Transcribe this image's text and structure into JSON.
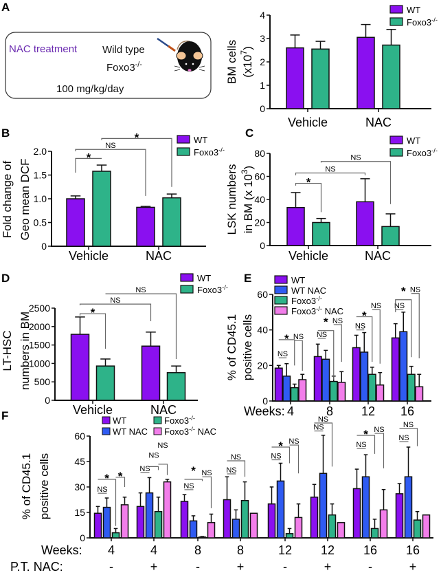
{
  "colors": {
    "WT": "#8A10F0",
    "WT NAC": "#2F5BF2",
    "Foxo3^{-/-}": "#2EB389",
    "Foxo3^{-/-} NAC": "#F27EEA",
    "treatment_text": "#6A2AB0",
    "bracket": "#666666"
  },
  "schematic": {
    "panel": "A",
    "treatment": "NAC treatment",
    "genotype_1": "Wild type",
    "genotype_2": "Foxo3^{-/-}",
    "dose": "100 mg/kg/day",
    "icon": "mouse-injection-icon"
  },
  "chart_data": [
    {
      "panel": "A",
      "type": "bar",
      "categories": [
        "Vehicle",
        "NAC"
      ],
      "series": [
        {
          "name": "WT",
          "values": [
            2.6,
            3.05
          ],
          "errors": [
            0.55,
            0.55
          ]
        },
        {
          "name": "Foxo3^{-/-}",
          "values": [
            2.55,
            2.72
          ],
          "errors": [
            0.33,
            0.67
          ]
        }
      ],
      "ylabel": [
        "BM cells",
        "(x10^{7})"
      ],
      "ylim": [
        0,
        4
      ],
      "yticks": [
        "0",
        "1",
        "2",
        "3",
        "4"
      ],
      "annotations": []
    },
    {
      "panel": "B",
      "type": "bar",
      "categories": [
        "Vehicle",
        "NAC"
      ],
      "series": [
        {
          "name": "WT",
          "values": [
            1.0,
            0.82
          ],
          "errors": [
            0.06,
            0.02
          ]
        },
        {
          "name": "Foxo3^{-/-}",
          "values": [
            1.58,
            1.02
          ],
          "errors": [
            0.13,
            0.08
          ]
        }
      ],
      "ylabel": [
        "Fold change of",
        "Geo mean DCF"
      ],
      "ylim": [
        0,
        2
      ],
      "yticks": [
        "0",
        "0.5",
        "1.0",
        "1.5",
        "2.0"
      ],
      "annotations": [
        {
          "from": [
            0,
            0
          ],
          "to": [
            0,
            1
          ],
          "level": 1.85,
          "drop_from": 1.55,
          "drop_to": 1.85,
          "label": "*"
        },
        {
          "from": [
            0,
            0
          ],
          "to": [
            1,
            0
          ],
          "level": 2.04,
          "drop_from": 2.0,
          "drop_to": 1.06,
          "label": "NS"
        },
        {
          "from": [
            0,
            1
          ],
          "to": [
            1,
            1
          ],
          "level": 2.27,
          "drop_from": 2.24,
          "drop_to": 1.25,
          "label": "*"
        }
      ]
    },
    {
      "panel": "C",
      "type": "bar",
      "categories": [
        "Vehicle",
        "NAC"
      ],
      "series": [
        {
          "name": "WT",
          "values": [
            33,
            38
          ],
          "errors": [
            13,
            20
          ]
        },
        {
          "name": "Foxo3^{-/-}",
          "values": [
            20,
            16.5
          ],
          "errors": [
            3.5,
            11
          ]
        }
      ],
      "ylabel": [
        "LSK numbers",
        "in BM (x 10^{3})"
      ],
      "ylim": [
        0,
        80
      ],
      "yticks": [
        "0",
        "20",
        "40",
        "60",
        "80"
      ],
      "annotations": [
        {
          "from": [
            0,
            0
          ],
          "to": [
            0,
            1
          ],
          "level": 54,
          "drop_from": 52,
          "drop_to": 29,
          "label": "*"
        },
        {
          "from": [
            0,
            0
          ],
          "to": [
            1,
            0
          ],
          "level": 63,
          "drop_from": 61,
          "drop_to": 61,
          "label": "NS"
        },
        {
          "from": [
            0,
            1
          ],
          "to": [
            1,
            1
          ],
          "level": 73,
          "drop_from": 72,
          "drop_to": 36,
          "label": "NS"
        }
      ]
    },
    {
      "panel": "D",
      "type": "bar",
      "categories": [
        "Vehicle",
        "NAC"
      ],
      "series": [
        {
          "name": "WT",
          "values": [
            1790,
            1470
          ],
          "errors": [
            470,
            380
          ]
        },
        {
          "name": "Foxo3^{-/-}",
          "values": [
            930,
            750
          ],
          "errors": [
            190,
            180
          ]
        }
      ],
      "ylabel": [
        "LT-HSC",
        "numbers in BM"
      ],
      "ylim": [
        0,
        2500
      ],
      "yticks": [
        "0",
        "500",
        "1000",
        "1500",
        "2000",
        "2500"
      ],
      "annotations": [
        {
          "from": [
            0,
            0
          ],
          "to": [
            0,
            1
          ],
          "level": 2350,
          "drop_from": 2300,
          "drop_to": 1400,
          "label": "*"
        },
        {
          "from": [
            0,
            0
          ],
          "to": [
            1,
            0
          ],
          "level": 2610,
          "drop_from": 2580,
          "drop_to": 2145,
          "label": "NS"
        },
        {
          "from": [
            0,
            1
          ],
          "to": [
            1,
            1
          ],
          "level": 2890,
          "drop_from": 2890,
          "drop_to": 1120,
          "label": "NS"
        }
      ]
    },
    {
      "panel": "E",
      "type": "bar",
      "xlabel": "Weeks:",
      "categories": [
        "4",
        "8",
        "12",
        "16"
      ],
      "series": [
        {
          "name": "WT",
          "values": [
            18.5,
            25,
            30,
            35.5
          ],
          "errors": [
            1.5,
            7,
            7,
            8
          ]
        },
        {
          "name": "WT NAC",
          "values": [
            14,
            23.5,
            27.5,
            39
          ],
          "errors": [
            7,
            5,
            11,
            11
          ]
        },
        {
          "name": "Foxo3^{-/-}",
          "values": [
            7.5,
            11,
            15,
            15
          ],
          "errors": [
            2,
            3,
            4,
            4.5
          ]
        },
        {
          "name": "Foxo3^{-/-} NAC",
          "values": [
            12,
            10.5,
            9,
            8
          ],
          "errors": [
            3,
            6,
            7,
            7
          ]
        }
      ],
      "ylabel": [
        "% of CD45.1",
        "positive cells"
      ],
      "ylim": [
        0,
        60
      ],
      "yticks": [
        "0",
        "20",
        "40",
        "60"
      ],
      "annotations": [
        {
          "from": [
            0,
            0
          ],
          "to": [
            0,
            1
          ],
          "level": 24.3,
          "drop_from": 24.3,
          "drop_to": 24.3,
          "label": "NS"
        },
        {
          "from": [
            0,
            0
          ],
          "to": [
            0,
            2
          ],
          "level": 34.5,
          "drop_from": 34.5,
          "drop_to": 20,
          "label": "*"
        },
        {
          "from": [
            0,
            2
          ],
          "to": [
            0,
            3
          ],
          "level": 34,
          "drop_from": 34,
          "drop_to": 17,
          "label": "NS"
        },
        {
          "from": [
            1,
            0
          ],
          "to": [
            1,
            1
          ],
          "level": 35.3,
          "drop_from": 35.3,
          "drop_to": 35.3,
          "label": "NS"
        },
        {
          "from": [
            1,
            0
          ],
          "to": [
            1,
            2
          ],
          "level": 39.6,
          "drop_from": 39.6,
          "drop_to": 12,
          "label": "*"
        },
        {
          "from": [
            1,
            2
          ],
          "to": [
            1,
            3
          ],
          "level": 43,
          "drop_from": 43,
          "drop_to": 22,
          "label": "NS"
        },
        {
          "from": [
            2,
            0
          ],
          "to": [
            2,
            1
          ],
          "level": 40,
          "drop_from": 40,
          "drop_to": 40,
          "label": "NS"
        },
        {
          "from": [
            2,
            0
          ],
          "to": [
            2,
            2
          ],
          "level": 47.4,
          "drop_from": 47.4,
          "drop_to": 22,
          "label": "*"
        },
        {
          "from": [
            2,
            2
          ],
          "to": [
            2,
            3
          ],
          "level": 51.4,
          "drop_from": 51.4,
          "drop_to": 21,
          "label": "NS"
        },
        {
          "from": [
            3,
            0
          ],
          "to": [
            3,
            1
          ],
          "level": 51.4,
          "drop_from": 51.4,
          "drop_to": 51.4,
          "label": "NS"
        },
        {
          "from": [
            3,
            0
          ],
          "to": [
            3,
            2
          ],
          "level": 57,
          "drop_from": 50,
          "drop_to": 24.7,
          "label": "*"
        },
        {
          "from": [
            3,
            2
          ],
          "to": [
            3,
            3
          ],
          "level": 60.5,
          "drop_from": 60.5,
          "drop_to": 24,
          "label": "NS"
        }
      ]
    },
    {
      "panel": "F",
      "type": "bar",
      "xlabel": "Weeks:",
      "categories": [
        "4",
        "4",
        "8",
        "8",
        "12",
        "12",
        "16",
        "16"
      ],
      "row2_label": "P.T. NAC:",
      "row2": [
        "-",
        "+",
        "-",
        "+",
        "-",
        "+",
        "-",
        "+"
      ],
      "series": [
        {
          "name": "WT",
          "values": [
            14.5,
            18.5,
            21.5,
            22.5,
            20,
            24,
            29,
            26
          ],
          "errors": [
            4,
            8,
            4,
            13.5,
            10,
            7.5,
            11.5,
            6
          ]
        },
        {
          "name": "WT NAC",
          "values": [
            18,
            26.5,
            10,
            11,
            33.5,
            38,
            36,
            36
          ],
          "errors": [
            5.5,
            9,
            3,
            5.5,
            10.5,
            22.5,
            13,
            17.5
          ]
        },
        {
          "name": "Foxo3^{-/-}",
          "values": [
            3,
            15.5,
            0.5,
            22,
            2.5,
            13.5,
            5.5,
            10.5
          ],
          "errors": [
            2.5,
            8.5,
            0.3,
            11,
            3,
            6.5,
            5.5,
            5
          ]
        },
        {
          "name": "Foxo3^{-/-} NAC",
          "values": [
            19.5,
            33,
            9,
            14.5,
            12,
            9,
            16.5,
            13.5
          ],
          "errors": [
            4.5,
            1.5,
            5,
            0,
            8,
            0,
            12,
            0
          ]
        }
      ],
      "ylabel": [
        "% of CD45.1",
        "positive cells"
      ],
      "ylim": [
        0,
        65
      ],
      "yticks": [
        "0",
        "15",
        "30",
        "45",
        "60"
      ],
      "annotations": [
        {
          "from": [
            0,
            0
          ],
          "to": [
            0,
            1
          ],
          "level": 26.3,
          "drop_from": 26.3,
          "drop_to": 26.3,
          "label": "NS"
        },
        {
          "from": [
            0,
            0
          ],
          "to": [
            0,
            2
          ],
          "level": 34.5,
          "drop_from": 34.5,
          "drop_to": 7,
          "label": "*"
        },
        {
          "from": [
            0,
            2
          ],
          "to": [
            0,
            3
          ],
          "level": 35.7,
          "drop_from": 35.7,
          "drop_to": 30,
          "label": "*"
        },
        {
          "from": [
            1,
            0
          ],
          "to": [
            1,
            1
          ],
          "level": 38.5,
          "drop_from": 38.5,
          "drop_to": 38.5,
          "label": "NS"
        },
        {
          "from": [
            1,
            1
          ],
          "to": [
            1,
            2
          ],
          "level": 42,
          "drop_from": 42,
          "drop_to": 40,
          "label": "NS"
        },
        {
          "from": [
            1,
            2
          ],
          "to": [
            1,
            3
          ],
          "level": 43.4,
          "drop_from": 43.4,
          "drop_to": 37,
          "label": "NS"
        },
        {
          "from": [
            2,
            0
          ],
          "to": [
            2,
            1
          ],
          "level": 28.4,
          "drop_from": 28.4,
          "drop_to": 28.4,
          "label": "NS"
        },
        {
          "from": [
            2,
            0
          ],
          "to": [
            2,
            2
          ],
          "level": 34.5,
          "drop_from": 34.5,
          "drop_to": 33.5,
          "label": "*"
        },
        {
          "from": [
            2,
            2
          ],
          "to": [
            2,
            3
          ],
          "level": 36,
          "drop_from": 36,
          "drop_to": 17.5,
          "label": "NS"
        },
        {
          "from": [
            3,
            0
          ],
          "to": [
            3,
            1
          ],
          "level": 37.7,
          "drop_from": 37.7,
          "drop_to": 37.7,
          "label": "NS"
        },
        {
          "from": [
            3,
            0
          ],
          "to": [
            3,
            2
          ],
          "level": 45.4,
          "drop_from": 45.4,
          "drop_to": 36,
          "label": "NS"
        },
        {
          "from": [
            4,
            0
          ],
          "to": [
            4,
            1
          ],
          "level": 46,
          "drop_from": 46,
          "drop_to": 46,
          "label": "NS"
        },
        {
          "from": [
            4,
            0
          ],
          "to": [
            4,
            2
          ],
          "level": 53.5,
          "drop_from": 53.5,
          "drop_to": 44,
          "label": "*"
        },
        {
          "from": [
            4,
            2
          ],
          "to": [
            4,
            3
          ],
          "level": 54.7,
          "drop_from": 54.7,
          "drop_to": 38,
          "label": "NS"
        },
        {
          "from": [
            5,
            0
          ],
          "to": [
            5,
            1
          ],
          "level": 63,
          "drop_from": 63,
          "drop_to": 63,
          "label": "NS"
        },
        {
          "from": [
            5,
            0
          ],
          "to": [
            5,
            2
          ],
          "level": 67.7,
          "drop_from": 67.7,
          "drop_to": 42,
          "label": "NS"
        },
        {
          "from": [
            6,
            0
          ],
          "to": [
            6,
            1
          ],
          "level": 52.7,
          "drop_from": 52.7,
          "drop_to": 52.7,
          "label": "NS"
        },
        {
          "from": [
            6,
            0
          ],
          "to": [
            6,
            2
          ],
          "level": 60.4,
          "drop_from": 60.4,
          "drop_to": 49.5,
          "label": "*"
        },
        {
          "from": [
            6,
            2
          ],
          "to": [
            6,
            3
          ],
          "level": 61.6,
          "drop_from": 61.6,
          "drop_to": 41,
          "label": "NS"
        },
        {
          "from": [
            7,
            0
          ],
          "to": [
            7,
            1
          ],
          "level": 56.7,
          "drop_from": 56.7,
          "drop_to": 56.7,
          "label": "NS"
        },
        {
          "from": [
            7,
            0
          ],
          "to": [
            7,
            2
          ],
          "level": 64.5,
          "drop_from": 64.5,
          "drop_to": 54,
          "label": "NS"
        }
      ]
    }
  ]
}
